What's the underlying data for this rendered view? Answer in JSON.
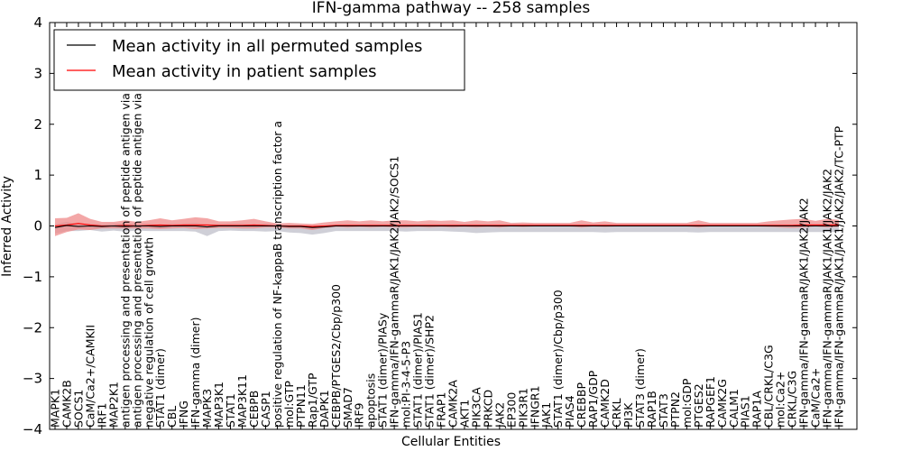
{
  "chart_data": {
    "type": "line",
    "title": "IFN-gamma pathway -- 258 samples",
    "xlabel": "Cellular Entities",
    "ylabel": "Inferred Activity",
    "ylim": [
      -4,
      4
    ],
    "yticks": [
      -4,
      -3,
      -2,
      -1,
      0,
      1,
      2,
      3,
      4
    ],
    "grid": false,
    "legend_position": "top-left",
    "categories": [
      "MAPK1",
      "CAMK2B",
      "SOCS1",
      "CaM/Ca2+/CAMKII",
      "IRF1",
      "MAP2K1",
      "antigen processing and presentation of peptide antigen via MHC cla",
      "antigen processing and presentation of peptide antigen via MHC cla",
      "negative regulation of cell growth",
      "STAT1 (dimer)",
      "CBL",
      "IFNG",
      "IFN-gamma (dimer)",
      "MAPK3",
      "MAP3K1",
      "STAT1",
      "MAP3K11",
      "CEBPB",
      "CASP1",
      "positive regulation of NF-kappaB transcription factor a",
      "mol:GTP",
      "PTPN11",
      "Rap1/GTP",
      "DAPK1",
      "CEBPB/PTGES2/Cbp/p300",
      "SMAD7",
      "IRF9",
      "apoptosis",
      "STAT1 (dimer)/PIASy",
      "IFN-gamma/IFN-gammaR/JAK1/JAK2/JAK2/SOCS1",
      "mol:PI-3-4-5-P3",
      "STAT1 (dimer)/PIAS1",
      "STAT1 (dimer)/SHP2",
      "FRAP1",
      "CAMK2A",
      "AKT1",
      "PIK3CA",
      "PRKCD",
      "JAK2",
      "EP300",
      "PIK3R1",
      "IFNGR1",
      "JAK1",
      "STAT1 (dimer)/Cbp/p300",
      "PIAS4",
      "CREBBP",
      "RAP1/GDP",
      "CAMK2D",
      "CRKL",
      "PI3K",
      "STAT3 (dimer)",
      "RAP1B",
      "STAT3",
      "PTPN2",
      "mol:GDP",
      "PTGES2",
      "RAPGEF1",
      "CAMK2G",
      "CALM1",
      "PIAS1",
      "RAP1A",
      "CBL/CRKL/C3G",
      "mol:Ca2+",
      "CRKL/C3G",
      "IFN-gamma/IFN-gammaR/JAK1/JAK2/JAK2",
      "CaM/Ca2+",
      "IFN-gamma/IFN-gammaR/JAK1/JAK1/JAK2/JAK2",
      "IFN-gamma/IFN-gammaR/JAK1/JAK1/JAK2/JAK2/TC-PTP"
    ],
    "series": [
      {
        "name": "Mean activity in all permuted samples",
        "color": "#000000",
        "values": [
          -0.03,
          0.01,
          -0.01,
          0.0,
          -0.01,
          0.0,
          -0.01,
          0.0,
          0.0,
          -0.01,
          0.0,
          0.0,
          0.0,
          -0.02,
          0.0,
          0.0,
          0.0,
          0.0,
          0.0,
          0.0,
          -0.01,
          -0.01,
          -0.03,
          -0.02,
          0.0,
          0.0,
          0.0,
          0.0,
          0.0,
          0.0,
          0.0,
          0.0,
          0.0,
          0.0,
          0.0,
          0.0,
          0.0,
          0.0,
          0.0,
          0.0,
          0.0,
          0.0,
          0.0,
          0.0,
          0.0,
          0.0,
          0.0,
          0.0,
          0.0,
          0.0,
          0.0,
          0.0,
          0.0,
          0.0,
          0.0,
          0.0,
          0.0,
          0.0,
          0.0,
          0.0,
          0.0,
          0.0,
          0.0,
          0.0,
          0.0,
          0.0,
          0.0,
          0.0
        ],
        "band_upper": [
          0.06,
          0.07,
          0.05,
          0.05,
          0.04,
          0.05,
          0.05,
          0.05,
          0.05,
          0.04,
          0.05,
          0.05,
          0.06,
          0.05,
          0.04,
          0.05,
          0.05,
          0.04,
          0.05,
          0.04,
          0.03,
          0.03,
          0.02,
          0.02,
          0.03,
          0.04,
          0.04,
          0.04,
          0.04,
          0.04,
          0.04,
          0.04,
          0.04,
          0.04,
          0.04,
          0.04,
          0.04,
          0.04,
          0.04,
          0.04,
          0.04,
          0.04,
          0.04,
          0.04,
          0.04,
          0.04,
          0.04,
          0.04,
          0.04,
          0.04,
          0.04,
          0.04,
          0.04,
          0.04,
          0.04,
          0.04,
          0.04,
          0.04,
          0.04,
          0.04,
          0.04,
          0.04,
          0.04,
          0.04,
          0.04,
          0.04,
          0.04,
          0.04
        ],
        "band_lower": [
          -0.12,
          -0.11,
          -0.09,
          -0.08,
          -0.1,
          -0.09,
          -0.1,
          -0.09,
          -0.1,
          -0.09,
          -0.1,
          -0.1,
          -0.11,
          -0.18,
          -0.1,
          -0.09,
          -0.1,
          -0.1,
          -0.11,
          -0.1,
          -0.12,
          -0.13,
          -0.14,
          -0.12,
          -0.1,
          -0.1,
          -0.1,
          -0.1,
          -0.1,
          -0.1,
          -0.11,
          -0.1,
          -0.1,
          -0.1,
          -0.11,
          -0.12,
          -0.14,
          -0.13,
          -0.12,
          -0.12,
          -0.12,
          -0.12,
          -0.12,
          -0.12,
          -0.12,
          -0.12,
          -0.12,
          -0.13,
          -0.12,
          -0.12,
          -0.12,
          -0.12,
          -0.12,
          -0.12,
          -0.12,
          -0.13,
          -0.12,
          -0.12,
          -0.12,
          -0.12,
          -0.12,
          -0.12,
          -0.12,
          -0.12,
          -0.12,
          -0.12,
          -0.12,
          -0.12
        ]
      },
      {
        "name": "Mean activity in patient samples",
        "color": "#ff0000",
        "values": [
          0.0,
          0.02,
          0.05,
          0.02,
          0.0,
          0.0,
          0.01,
          0.0,
          0.01,
          0.02,
          0.01,
          0.02,
          0.02,
          0.02,
          0.01,
          0.01,
          0.01,
          0.02,
          0.01,
          0.0,
          0.0,
          0.0,
          -0.01,
          0.0,
          0.01,
          0.01,
          0.01,
          0.01,
          0.01,
          0.01,
          0.01,
          0.01,
          0.01,
          0.01,
          0.01,
          0.01,
          0.01,
          0.01,
          0.01,
          0.01,
          0.01,
          0.01,
          0.01,
          0.01,
          0.01,
          0.01,
          0.01,
          0.01,
          0.01,
          0.01,
          0.01,
          0.01,
          0.01,
          0.01,
          0.01,
          0.01,
          0.01,
          0.01,
          0.01,
          0.01,
          0.01,
          0.01,
          0.01,
          0.01,
          0.02,
          0.02,
          0.02,
          0.02
        ],
        "band_upper": [
          0.15,
          0.14,
          0.2,
          0.12,
          0.08,
          0.08,
          0.1,
          0.08,
          0.1,
          0.13,
          0.1,
          0.12,
          0.15,
          0.13,
          0.08,
          0.08,
          0.1,
          0.12,
          0.08,
          0.05,
          0.06,
          0.05,
          0.05,
          0.07,
          0.08,
          0.1,
          0.08,
          0.1,
          0.08,
          0.1,
          0.1,
          0.08,
          0.1,
          0.09,
          0.1,
          0.07,
          0.1,
          0.08,
          0.1,
          0.05,
          0.06,
          0.05,
          0.05,
          0.05,
          0.05,
          0.1,
          0.06,
          0.08,
          0.05,
          0.05,
          0.05,
          0.05,
          0.05,
          0.05,
          0.05,
          0.1,
          0.05,
          0.05,
          0.05,
          0.05,
          0.05,
          0.08,
          0.1,
          0.12,
          0.12,
          0.08,
          0.12,
          0.1
        ],
        "band_lower": [
          -0.2,
          -0.14,
          -0.12,
          -0.1,
          -0.05,
          -0.05,
          -0.06,
          -0.05,
          -0.06,
          -0.08,
          -0.06,
          -0.06,
          -0.08,
          -0.07,
          -0.05,
          -0.05,
          -0.06,
          -0.07,
          -0.04,
          -0.03,
          -0.05,
          -0.05,
          -0.07,
          -0.04,
          -0.03,
          -0.04,
          -0.03,
          -0.04,
          -0.03,
          -0.04,
          -0.04,
          -0.03,
          -0.04,
          -0.03,
          -0.04,
          -0.03,
          -0.04,
          -0.03,
          -0.04,
          -0.02,
          -0.03,
          -0.02,
          -0.02,
          -0.02,
          -0.02,
          -0.04,
          -0.02,
          -0.03,
          -0.02,
          -0.02,
          -0.02,
          -0.02,
          -0.02,
          -0.02,
          -0.02,
          -0.04,
          -0.02,
          -0.02,
          -0.02,
          -0.02,
          -0.02,
          -0.03,
          -0.04,
          -0.05,
          -0.05,
          -0.03,
          -0.05,
          -0.04
        ]
      }
    ],
    "band_colors": {
      "permuted": "#c7c7d0",
      "patient": "#ef8a8a"
    }
  }
}
